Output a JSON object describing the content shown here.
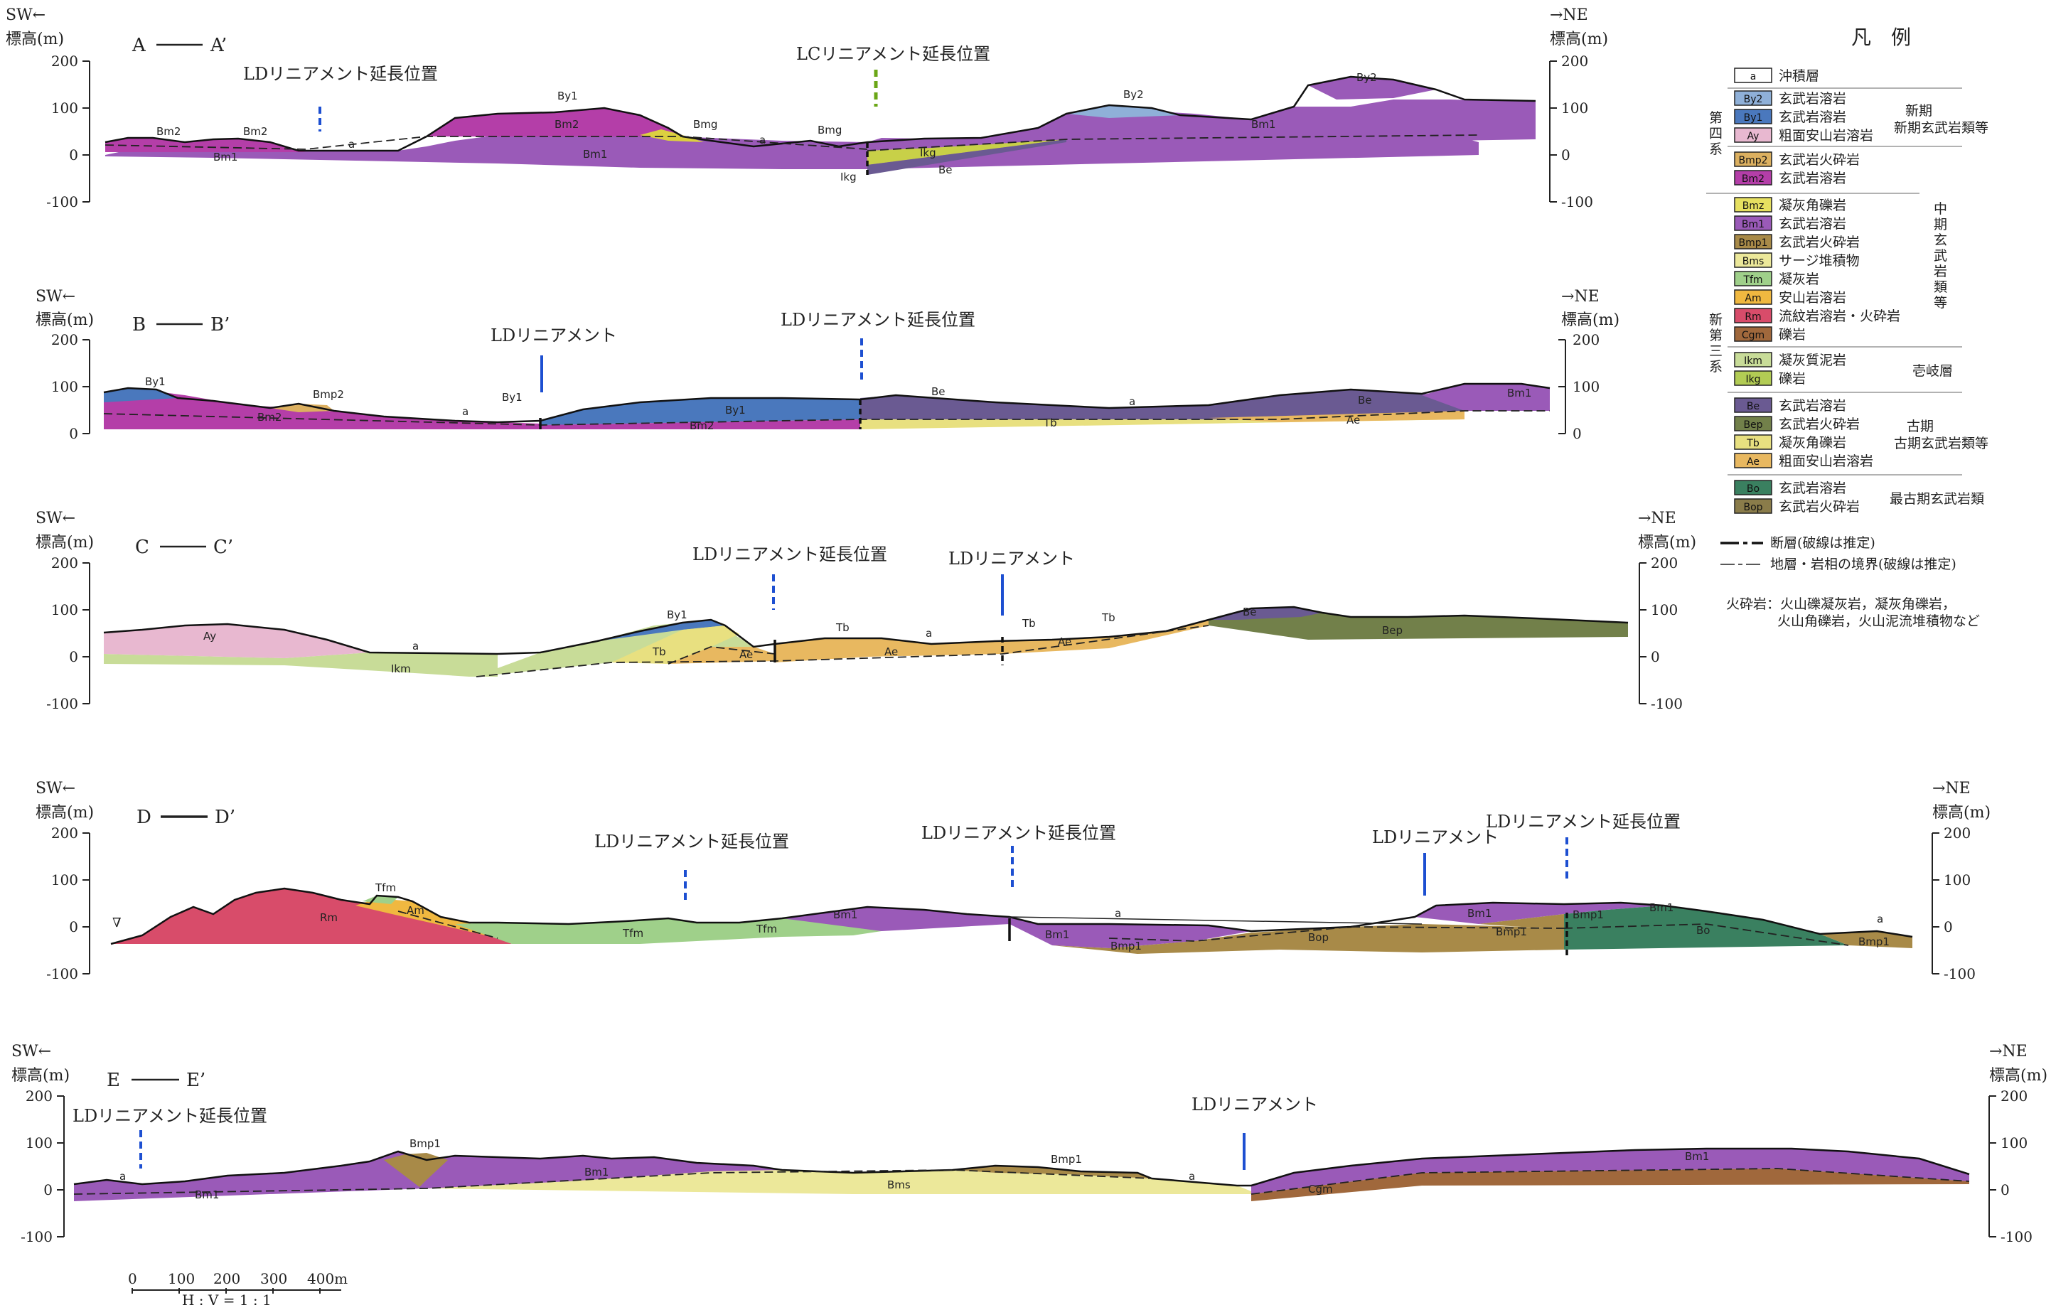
{
  "sections": [
    {
      "id": "A",
      "left_dir": "SW←",
      "right_dir": "→NE",
      "elev_label": "標高(m)",
      "title_left": "A",
      "title_right": "A’",
      "ticks": [
        "200",
        "100",
        "0",
        "-100"
      ],
      "annotations": [
        "LDリニアメント延長位置",
        "LCリニアメント延長位置"
      ],
      "units": [
        "Bm2",
        "Bm2",
        "Bm1",
        "a",
        "By1",
        "Bm2",
        "Bm1",
        "Bmg",
        "a",
        "Bmg",
        "Ikg",
        "Ikg",
        "Be",
        "By2",
        "Bm1",
        "By2"
      ]
    },
    {
      "id": "B",
      "left_dir": "SW←",
      "right_dir": "→NE",
      "elev_label": "標高(m)",
      "title_left": "B",
      "title_right": "B’",
      "ticks": [
        "200",
        "100",
        "0"
      ],
      "annotations": [
        "LDリニアメント",
        "LDリニアメント延長位置"
      ],
      "units": [
        "By1",
        "Bmp2",
        "Bm2",
        "a",
        "By1",
        "By1",
        "Bm2",
        "Be",
        "a",
        "Tb",
        "Be",
        "Ae",
        "Bm1"
      ]
    },
    {
      "id": "C",
      "left_dir": "SW←",
      "right_dir": "→NE",
      "elev_label": "標高(m)",
      "title_left": "C",
      "title_right": "C’",
      "ticks": [
        "200",
        "100",
        "0",
        "-100"
      ],
      "annotations": [
        "LDリニアメント延長位置",
        "LDリニアメント"
      ],
      "units": [
        "Ay",
        "a",
        "Ikm",
        "By1",
        "Tb",
        "Ae",
        "Tb",
        "Ae",
        "a",
        "Tb",
        "Ae",
        "Tb",
        "Be",
        "Bep"
      ]
    },
    {
      "id": "D",
      "left_dir": "SW←",
      "right_dir": "→NE",
      "elev_label": "標高(m)",
      "title_left": "D",
      "title_right": "D’",
      "ticks": [
        "200",
        "100",
        "0",
        "-100"
      ],
      "annotations": [
        "LDリニアメント延長位置",
        "LDリニアメント延長位置",
        "LDリニアメント",
        "LDリニアメント延長位置"
      ],
      "units": [
        "Tfm",
        "Am",
        "Rm",
        "Tfm",
        "Tfm",
        "Bm1",
        "Bm1",
        "Bmp1",
        "a",
        "Bop",
        "Bm1",
        "Bmp1",
        "Bmp1",
        "Bm1",
        "Bo",
        "a",
        "Bmp1"
      ]
    },
    {
      "id": "E",
      "left_dir": "SW←",
      "right_dir": "→NE",
      "elev_label": "標高(m)",
      "title_left": "E",
      "title_right": "E’",
      "ticks": [
        "200",
        "100",
        "0",
        "-100"
      ],
      "annotations": [
        "LDリニアメント延長位置",
        "LDリニアメント"
      ],
      "units": [
        "a",
        "Bm1",
        "Bmp1",
        "Bm1",
        "Bms",
        "Bmp1",
        "a",
        "Cgm",
        "Bm1"
      ]
    }
  ],
  "scale": {
    "ticks": [
      "0",
      "100",
      "200",
      "300",
      "400m"
    ],
    "ratio": "H : V = 1 : 1"
  },
  "legend": {
    "title": "凡　例",
    "groups": [
      {
        "system": "",
        "group_label": "",
        "items": [
          {
            "code": "a",
            "name": "沖積層",
            "color": "#ffffff"
          }
        ]
      },
      {
        "system": "第四系",
        "group_label": "新期玄武岩類等",
        "items": [
          {
            "code": "By2",
            "name": "玄武岩溶岩",
            "color": "#8fb0d8"
          },
          {
            "code": "By1",
            "name": "玄武岩溶岩",
            "color": "#4a78bd"
          },
          {
            "code": "Ay",
            "name": "粗面安山岩溶岩",
            "color": "#e8b8d0"
          }
        ]
      },
      {
        "system": "",
        "group_label": "",
        "items": [
          {
            "code": "Bmp2",
            "name": "玄武岩火砕岩",
            "color": "#dcb060"
          },
          {
            "code": "Bm2",
            "name": "玄武岩溶岩",
            "color": "#b43ea8"
          }
        ]
      },
      {
        "system": "新第三系",
        "group_label": "中期玄武岩類等",
        "items": [
          {
            "code": "Bmz",
            "name": "凝灰角礫岩",
            "color": "#e6e060"
          },
          {
            "code": "Bm1",
            "name": "玄武岩溶岩",
            "color": "#9a5ab8"
          },
          {
            "code": "Bmp1",
            "name": "玄武岩火砕岩",
            "color": "#a88a48"
          },
          {
            "code": "Bms",
            "name": "サージ堆積物",
            "color": "#ece89a"
          },
          {
            "code": "Tfm",
            "name": "凝灰岩",
            "color": "#9fd08a"
          },
          {
            "code": "Am",
            "name": "安山岩溶岩",
            "color": "#f0b840"
          },
          {
            "code": "Rm",
            "name": "流紋岩溶岩・火砕岩",
            "color": "#d84c6a"
          },
          {
            "code": "Cgm",
            "name": "礫岩",
            "color": "#a0683c"
          }
        ]
      },
      {
        "system": "",
        "group_label": "壱岐層",
        "items": [
          {
            "code": "Ikm",
            "name": "凝灰質泥岩",
            "color": "#c8dc98"
          },
          {
            "code": "Ikg",
            "name": "礫岩",
            "color": "#b2cc54"
          }
        ]
      },
      {
        "system": "",
        "group_label": "古期玄武岩類等",
        "items": [
          {
            "code": "Be",
            "name": "玄武岩溶岩",
            "color": "#6a5a92"
          },
          {
            "code": "Bep",
            "name": "玄武岩火砕岩",
            "color": "#72804a"
          },
          {
            "code": "Tb",
            "name": "凝灰角礫岩",
            "color": "#e8e080"
          },
          {
            "code": "Ae",
            "name": "粗面安山岩溶岩",
            "color": "#e8b860"
          }
        ]
      },
      {
        "system": "",
        "group_label": "最古期玄武岩類",
        "items": [
          {
            "code": "Bo",
            "name": "玄武岩溶岩",
            "color": "#3a8060"
          },
          {
            "code": "Bop",
            "name": "玄武岩火砕岩",
            "color": "#8a7c4a"
          }
        ]
      }
    ],
    "symbols": [
      {
        "label": "断層(破線は推定)"
      },
      {
        "label": "地層・岩相の境界(破線は推定)"
      }
    ],
    "note_line1": "火砕岩：火山礫凝灰岩，凝灰角礫岩，",
    "note_line2": "火山角礫岩，火山泥流堆積物など"
  }
}
